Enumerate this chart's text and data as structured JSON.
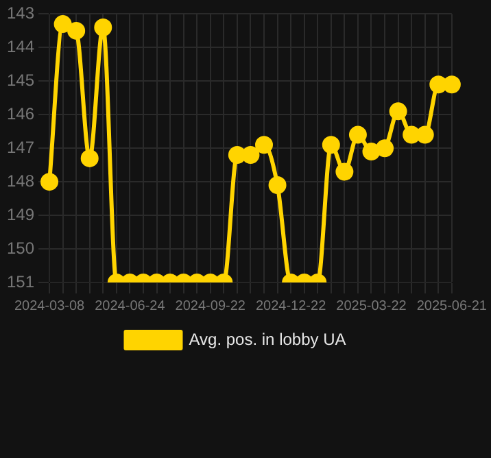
{
  "chart_data": {
    "type": "line",
    "categories": [
      "2024-03-08",
      null,
      null,
      null,
      null,
      null,
      "2024-06-24",
      null,
      null,
      null,
      null,
      null,
      "2024-09-22",
      null,
      null,
      null,
      null,
      null,
      "2024-12-22",
      null,
      null,
      null,
      null,
      null,
      "2025-03-22",
      null,
      null,
      null,
      null,
      null,
      "2025-06-21"
    ],
    "series": [
      {
        "name": "Avg. pos. in lobby UA",
        "color": "#ffd400",
        "values": [
          148.0,
          143.3,
          143.5,
          147.3,
          143.4,
          151,
          151,
          151,
          151,
          151,
          151,
          151,
          151,
          151,
          147.2,
          147.2,
          146.9,
          148.1,
          151,
          151,
          151,
          146.9,
          147.7,
          146.6,
          147.1,
          147.0,
          145.9,
          146.6,
          146.6,
          145.1,
          145.1
        ]
      }
    ],
    "ylim": [
      151,
      143
    ],
    "yticks": [
      143,
      144,
      145,
      146,
      147,
      148,
      149,
      150,
      151
    ],
    "grid": true,
    "legend": "bottom",
    "marker": "circle",
    "line_style": "solid"
  }
}
